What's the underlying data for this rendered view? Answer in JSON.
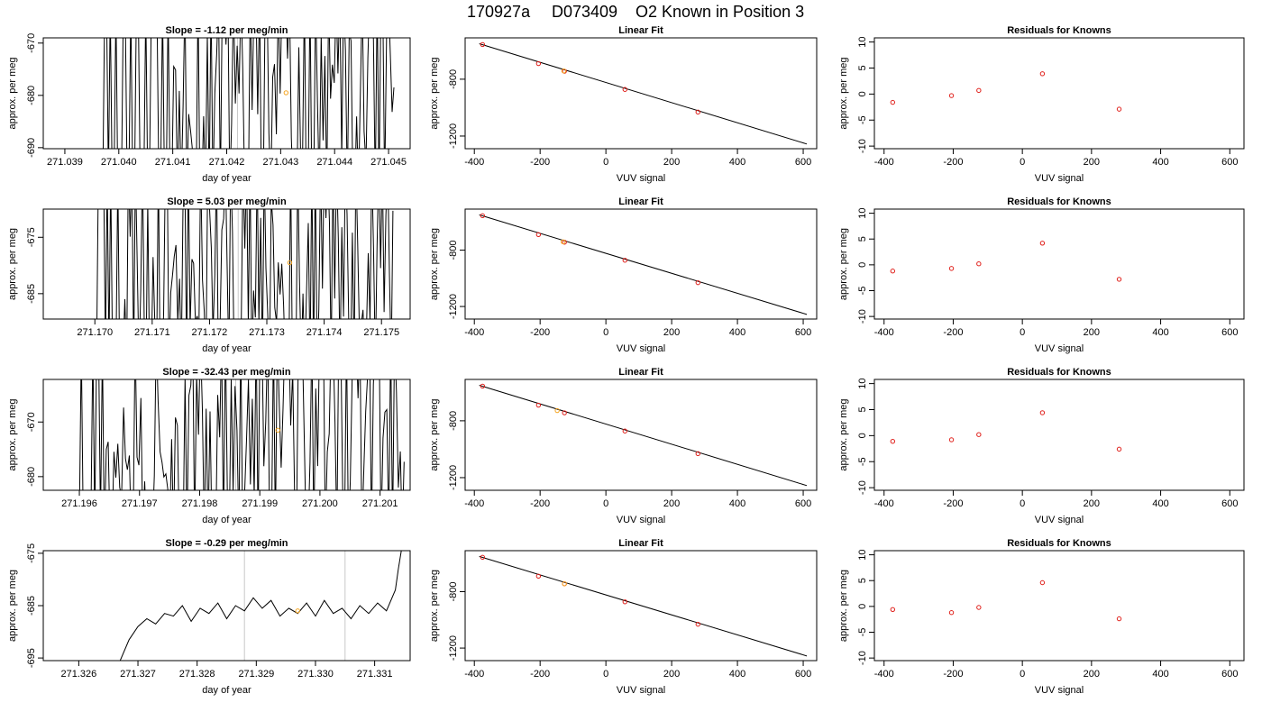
{
  "figure": {
    "title_parts": [
      "170927a",
      "D073409",
      "O2 Known in Position  3"
    ]
  },
  "chart_data": [
    {
      "type": "line",
      "panel": "time",
      "row": 0,
      "title": "Slope =  -1.12  per meg/min",
      "xlabel": "day of year",
      "ylabel": "approx. per meg",
      "xlim": [
        271.0386,
        271.0454
      ],
      "ylim": [
        -690.2,
        -669.0
      ],
      "xticks": [
        271.039,
        271.04,
        271.041,
        271.042,
        271.043,
        271.044,
        271.045
      ],
      "xtick_labels": [
        "271.039",
        "271.040",
        "271.041",
        "271.042",
        "271.043",
        "271.044",
        "271.045"
      ],
      "yticks": [
        -670,
        -680,
        -690
      ],
      "ytick_labels": [
        "-670",
        "-680",
        "-690"
      ],
      "vlines": [
        271.0422
      ],
      "marker": {
        "x": 271.0431,
        "y": -679.5,
        "color": "#f5a623"
      },
      "trace": {
        "start": 271.0396,
        "end": 271.0451,
        "n": 160,
        "center": -681,
        "amp": 26,
        "base_stop": 271.041,
        "seed": 11
      }
    },
    {
      "type": "scatter",
      "panel": "fit",
      "row": 0,
      "title": "Linear Fit",
      "xlabel": "VUV signal",
      "ylabel": "approx. per meg",
      "xlim": [
        -428,
        641
      ],
      "ylim": [
        -1289,
        -509
      ],
      "xticks": [
        -400,
        -200,
        0,
        200,
        400,
        600
      ],
      "yticks": [
        -800,
        -1200
      ],
      "points": {
        "x": [
          -375,
          -205,
          -126,
          58,
          280
        ],
        "y": [
          -556,
          -690,
          -744,
          -872,
          -1031
        ]
      },
      "highlight": {
        "x": -128,
        "y": -742
      },
      "line": {
        "x": [
          -385,
          611
        ],
        "y": [
          -550,
          -1256
        ]
      }
    },
    {
      "type": "scatter",
      "panel": "resid",
      "row": 0,
      "title": "Residuals for Knowns",
      "xlabel": "VUV signal",
      "xlim": [
        -428,
        641
      ],
      "ylim": [
        -10.5,
        10.8
      ],
      "xticks": [
        -400,
        -200,
        0,
        200,
        400,
        600
      ],
      "yticks": [
        10,
        5,
        0,
        -5,
        -10
      ],
      "points": {
        "x": [
          -375,
          -205,
          -126,
          58,
          280
        ],
        "y": [
          -1.6,
          -0.3,
          0.7,
          3.9,
          -2.9
        ]
      }
    },
    {
      "type": "line",
      "panel": "time",
      "row": 1,
      "title": "Slope =  5.03  per meg/min",
      "xlabel": "day of year",
      "ylabel": "approx. per meg",
      "xlim": [
        271.1691,
        271.1755
      ],
      "ylim": [
        -689.5,
        -670.0
      ],
      "xticks": [
        271.17,
        271.171,
        271.172,
        271.173,
        271.174,
        271.175
      ],
      "xtick_labels": [
        "271.170",
        "271.171",
        "271.172",
        "271.173",
        "271.174",
        "271.175"
      ],
      "yticks": [
        -675,
        -685
      ],
      "ytick_labels": [
        "-675",
        "-685"
      ],
      "vlines": [
        271.1725
      ],
      "marker": {
        "x": 271.1734,
        "y": -679.5,
        "color": "#f5a623"
      },
      "trace": {
        "start": 271.17,
        "end": 271.1752,
        "n": 170,
        "center": -680,
        "amp": 24,
        "base_stop": 271.1705,
        "seed": 23
      }
    },
    {
      "type": "scatter",
      "panel": "fit",
      "row": 1,
      "title": "Linear Fit",
      "xlabel": "VUV signal",
      "ylabel": "approx. per meg",
      "xlim": [
        -428,
        641
      ],
      "ylim": [
        -1289,
        -509
      ],
      "xticks": [
        -400,
        -200,
        0,
        200,
        400,
        600
      ],
      "yticks": [
        -800,
        -1200
      ],
      "points": {
        "x": [
          -375,
          -205,
          -126,
          58,
          280
        ],
        "y": [
          -556,
          -690,
          -744,
          -872,
          -1031
        ]
      },
      "highlight": {
        "x": -130,
        "y": -741
      },
      "line": {
        "x": [
          -385,
          611
        ],
        "y": [
          -550,
          -1256
        ]
      }
    },
    {
      "type": "scatter",
      "panel": "resid",
      "row": 1,
      "title": "Residuals for Knowns",
      "xlabel": "VUV signal",
      "xlim": [
        -428,
        641
      ],
      "ylim": [
        -10.5,
        10.8
      ],
      "xticks": [
        -400,
        -200,
        0,
        200,
        400,
        600
      ],
      "yticks": [
        10,
        5,
        0,
        -5,
        -10
      ],
      "points": {
        "x": [
          -375,
          -205,
          -126,
          58,
          280
        ],
        "y": [
          -1.2,
          -0.7,
          0.2,
          4.2,
          -2.8
        ]
      }
    },
    {
      "type": "line",
      "panel": "time",
      "row": 2,
      "title": "Slope =  -32.43  per meg/min",
      "xlabel": "day of year",
      "ylabel": "approx. per meg",
      "xlim": [
        271.1954,
        271.2015
      ],
      "ylim": [
        -682.5,
        -662.2
      ],
      "xticks": [
        271.196,
        271.197,
        271.198,
        271.199,
        271.2,
        271.201
      ],
      "xtick_labels": [
        "271.196",
        "271.197",
        "271.198",
        "271.199",
        "271.200",
        "271.201"
      ],
      "yticks": [
        -670,
        -680
      ],
      "ytick_labels": [
        "-670",
        "-680"
      ],
      "vlines": [
        271.1986
      ],
      "marker": {
        "x": 271.1993,
        "y": -671.5,
        "color": "#f5a623"
      },
      "trace": {
        "start": 271.196,
        "end": 271.2014,
        "n": 170,
        "center": -672,
        "amp": 24,
        "base_stop": 271.1964,
        "seed": 37
      }
    },
    {
      "type": "scatter",
      "panel": "fit",
      "row": 2,
      "title": "Linear Fit",
      "xlabel": "VUV signal",
      "ylabel": "approx. per meg",
      "xlim": [
        -428,
        641
      ],
      "ylim": [
        -1289,
        -509
      ],
      "xticks": [
        -400,
        -200,
        0,
        200,
        400,
        600
      ],
      "yticks": [
        -800,
        -1200
      ],
      "points": {
        "x": [
          -375,
          -205,
          -126,
          58,
          280
        ],
        "y": [
          -556,
          -690,
          -744,
          -872,
          -1031
        ]
      },
      "highlight": {
        "x": -148,
        "y": -728
      },
      "line": {
        "x": [
          -385,
          611
        ],
        "y": [
          -550,
          -1256
        ]
      }
    },
    {
      "type": "scatter",
      "panel": "resid",
      "row": 2,
      "title": "Residuals for Knowns",
      "xlabel": "VUV signal",
      "xlim": [
        -428,
        641
      ],
      "ylim": [
        -10.5,
        10.8
      ],
      "xticks": [
        -400,
        -200,
        0,
        200,
        400,
        600
      ],
      "yticks": [
        10,
        5,
        0,
        -5,
        -10
      ],
      "points": {
        "x": [
          -375,
          -205,
          -126,
          58,
          280
        ],
        "y": [
          -1.1,
          -0.8,
          0.2,
          4.4,
          -2.6
        ]
      }
    },
    {
      "type": "line",
      "panel": "time",
      "row": 3,
      "title": "Slope =  -0.29  per meg/min",
      "xlabel": "day of year",
      "ylabel": "approx. per meg",
      "xlim": [
        271.3254,
        271.3316
      ],
      "ylim": [
        -695.5,
        -674.5
      ],
      "xticks": [
        271.326,
        271.327,
        271.328,
        271.329,
        271.33,
        271.331
      ],
      "xtick_labels": [
        "271.326",
        "271.327",
        "271.328",
        "271.329",
        "271.330",
        "271.331"
      ],
      "yticks": [
        -675,
        -685,
        -695
      ],
      "ytick_labels": [
        "-675",
        "-685",
        "-695"
      ],
      "vlines": [
        271.3288,
        271.3305
      ],
      "marker": {
        "x": 271.3297,
        "y": -686.0,
        "color": "#f5a623"
      },
      "series": [
        {
          "x": [
            271.3267,
            271.32685,
            271.327,
            271.32715,
            271.3273,
            271.32745,
            271.3276,
            271.32775,
            271.3279,
            271.32805,
            271.3282,
            271.32835,
            271.3285,
            271.32865,
            271.3288,
            271.32895,
            271.3291,
            271.32925,
            271.3294,
            271.32955,
            271.3297,
            271.32985,
            271.33,
            271.33015,
            271.3303,
            271.33045,
            271.3306,
            271.33075,
            271.3309,
            271.33105,
            271.3312,
            271.33135,
            271.3314,
            271.33145
          ],
          "y": [
            -695.5,
            -691.5,
            -689.0,
            -687.5,
            -688.5,
            -686.5,
            -687.0,
            -685.0,
            -688.0,
            -685.5,
            -686.5,
            -684.5,
            -687.5,
            -685.0,
            -686.0,
            -683.5,
            -685.5,
            -684.0,
            -687.0,
            -685.5,
            -686.5,
            -684.5,
            -687.0,
            -684.0,
            -686.5,
            -685.5,
            -687.5,
            -685.0,
            -686.5,
            -684.5,
            -686.0,
            -682.0,
            -678.0,
            -674.5
          ]
        }
      ]
    },
    {
      "type": "scatter",
      "panel": "fit",
      "row": 3,
      "title": "Linear Fit",
      "xlabel": "VUV signal",
      "ylabel": "approx. per meg",
      "xlim": [
        -428,
        641
      ],
      "ylim": [
        -1289,
        -509
      ],
      "xticks": [
        -400,
        -200,
        0,
        200,
        400,
        600
      ],
      "yticks": [
        -800,
        -1200
      ],
      "points": {
        "x": [
          -375,
          -205,
          -126,
          58,
          280
        ],
        "y": [
          -556,
          -690,
          -744,
          -872,
          -1031
        ]
      },
      "highlight": {
        "x": -126,
        "y": -744
      },
      "line": {
        "x": [
          -385,
          611
        ],
        "y": [
          -550,
          -1256
        ]
      }
    },
    {
      "type": "scatter",
      "panel": "resid",
      "row": 3,
      "title": "Residuals for Knowns",
      "xlabel": "VUV signal",
      "xlim": [
        -428,
        641
      ],
      "ylim": [
        -10.5,
        10.8
      ],
      "xticks": [
        -400,
        -200,
        0,
        200,
        400,
        600
      ],
      "yticks": [
        10,
        5,
        0,
        -5,
        -10
      ],
      "points": {
        "x": [
          -375,
          -205,
          -126,
          58,
          280
        ],
        "y": [
          -0.6,
          -1.2,
          -0.2,
          4.6,
          -2.4
        ]
      }
    }
  ]
}
